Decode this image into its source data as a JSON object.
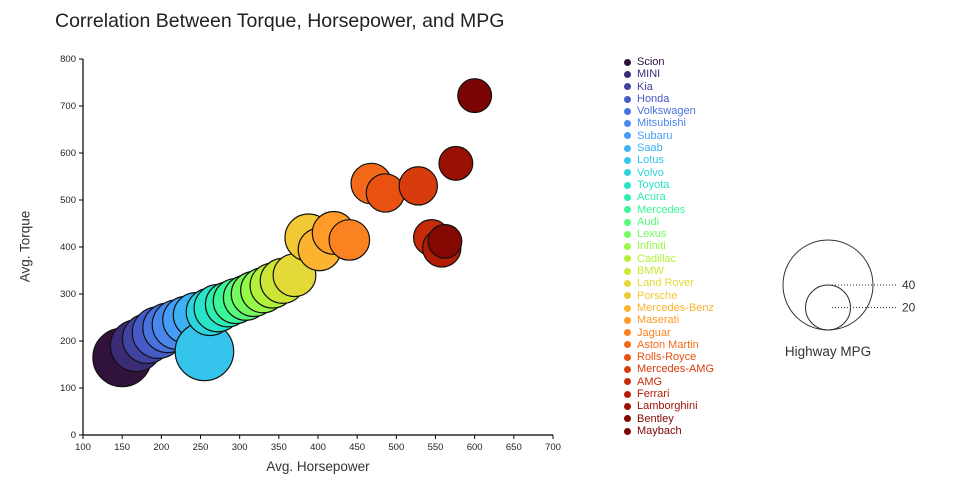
{
  "chart_data": {
    "type": "scatter",
    "title": "Correlation Between Torque, Horsepower, and MPG",
    "xlabel": "Avg. Horsepower",
    "ylabel": "Avg. Torque",
    "xlim": [
      100,
      700
    ],
    "ylim": [
      0,
      800
    ],
    "xticks": [
      100,
      150,
      200,
      250,
      300,
      350,
      400,
      450,
      500,
      550,
      600,
      650,
      700
    ],
    "yticks": [
      0,
      100,
      200,
      300,
      400,
      500,
      600,
      700,
      800
    ],
    "grid": false,
    "legend_position": "right",
    "size_field": "highway_mpg",
    "size_legend": {
      "caption": "Highway MPG",
      "values": [
        40,
        20
      ]
    },
    "series": [
      {
        "name": "Scion",
        "avg_horsepower": 150,
        "avg_torque": 165,
        "highway_mpg": 26,
        "color": "#30123b"
      },
      {
        "name": "MINI",
        "avg_horsepower": 168,
        "avg_torque": 190,
        "highway_mpg": 23,
        "color": "#392b74"
      },
      {
        "name": "Kia",
        "avg_horsepower": 182,
        "avg_torque": 205,
        "highway_mpg": 22,
        "color": "#4143a3"
      },
      {
        "name": "Honda",
        "avg_horsepower": 196,
        "avg_torque": 218,
        "highway_mpg": 23,
        "color": "#465bc7"
      },
      {
        "name": "Volkswagen",
        "avg_horsepower": 208,
        "avg_torque": 228,
        "highway_mpg": 22,
        "color": "#4872dc"
      },
      {
        "name": "Mitsubishi",
        "avg_horsepower": 220,
        "avg_torque": 235,
        "highway_mpg": 22,
        "color": "#4888ec"
      },
      {
        "name": "Subaru",
        "avg_horsepower": 232,
        "avg_torque": 245,
        "highway_mpg": 21,
        "color": "#469df7"
      },
      {
        "name": "Saab",
        "avg_horsepower": 244,
        "avg_torque": 255,
        "highway_mpg": 20,
        "color": "#3db1f4"
      },
      {
        "name": "Lotus",
        "avg_horsepower": 255,
        "avg_torque": 178,
        "highway_mpg": 26,
        "color": "#35c4ec"
      },
      {
        "name": "Volvo",
        "avg_horsepower": 262,
        "avg_torque": 262,
        "highway_mpg": 21,
        "color": "#2cd5dd"
      },
      {
        "name": "Toyota",
        "avg_horsepower": 272,
        "avg_torque": 270,
        "highway_mpg": 21,
        "color": "#28e3c8"
      },
      {
        "name": "Acura",
        "avg_horsepower": 285,
        "avg_torque": 278,
        "highway_mpg": 20,
        "color": "#2deeb0"
      },
      {
        "name": "Mercedes",
        "avg_horsepower": 295,
        "avg_torque": 285,
        "highway_mpg": 20,
        "color": "#3bf697"
      },
      {
        "name": "Audi",
        "avg_horsepower": 308,
        "avg_torque": 292,
        "highway_mpg": 20,
        "color": "#58fa7a"
      },
      {
        "name": "Lexus",
        "avg_horsepower": 318,
        "avg_torque": 300,
        "highway_mpg": 20,
        "color": "#76fb5f"
      },
      {
        "name": "Infiniti",
        "avg_horsepower": 330,
        "avg_torque": 308,
        "highway_mpg": 20,
        "color": "#95f947"
      },
      {
        "name": "Cadillac",
        "avg_horsepower": 342,
        "avg_torque": 318,
        "highway_mpg": 20,
        "color": "#b3f03a"
      },
      {
        "name": "BMW",
        "avg_horsepower": 355,
        "avg_torque": 328,
        "highway_mpg": 20,
        "color": "#cde635"
      },
      {
        "name": "Land Rover",
        "avg_horsepower": 370,
        "avg_torque": 340,
        "highway_mpg": 19,
        "color": "#e3d938"
      },
      {
        "name": "Porsche",
        "avg_horsepower": 388,
        "avg_torque": 420,
        "highway_mpg": 21,
        "color": "#f2c835"
      },
      {
        "name": "Mercedes-Benz",
        "avg_horsepower": 402,
        "avg_torque": 395,
        "highway_mpg": 19,
        "color": "#fbb330"
      },
      {
        "name": "Maserati",
        "avg_horsepower": 420,
        "avg_torque": 430,
        "highway_mpg": 19,
        "color": "#fe9b29"
      },
      {
        "name": "Jaguar",
        "avg_horsepower": 440,
        "avg_torque": 415,
        "highway_mpg": 18,
        "color": "#fa8221"
      },
      {
        "name": "Aston Martin",
        "avg_horsepower": 468,
        "avg_torque": 535,
        "highway_mpg": 18,
        "color": "#f36919"
      },
      {
        "name": "Rolls-Royce",
        "avg_horsepower": 486,
        "avg_torque": 515,
        "highway_mpg": 17,
        "color": "#e95111"
      },
      {
        "name": "Mercedes-AMG",
        "avg_horsepower": 528,
        "avg_torque": 530,
        "highway_mpg": 17,
        "color": "#d93c0c"
      },
      {
        "name": "AMG",
        "avg_horsepower": 545,
        "avg_torque": 420,
        "highway_mpg": 16,
        "color": "#c62b07"
      },
      {
        "name": "Ferrari",
        "avg_horsepower": 558,
        "avg_torque": 398,
        "highway_mpg": 17,
        "color": "#b11c04"
      },
      {
        "name": "Lamborghini",
        "avg_horsepower": 576,
        "avg_torque": 578,
        "highway_mpg": 15,
        "color": "#981103"
      },
      {
        "name": "Bentley",
        "avg_horsepower": 562,
        "avg_torque": 412,
        "highway_mpg": 15,
        "color": "#850902"
      },
      {
        "name": "Maybach",
        "avg_horsepower": 600,
        "avg_torque": 722,
        "highway_mpg": 15,
        "color": "#7a0403"
      }
    ]
  }
}
